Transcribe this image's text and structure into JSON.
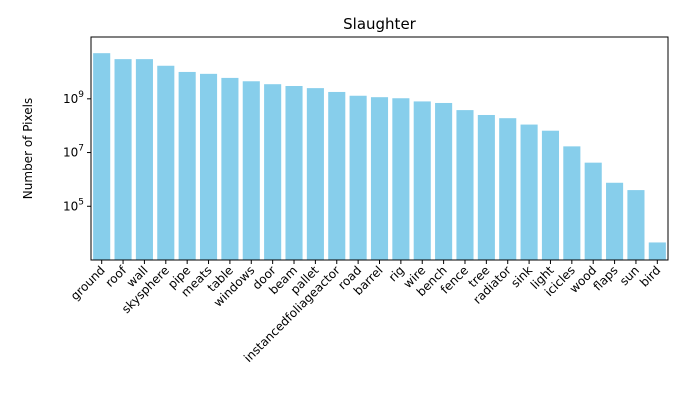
{
  "chart_data": {
    "type": "bar",
    "title": "Slaughter",
    "xlabel": "",
    "ylabel": "Number of Pixels",
    "yscale": "log",
    "ylim": [
      1000,
      200000000000
    ],
    "yticks": [
      {
        "value": 100000,
        "base": "10",
        "exp": "5"
      },
      {
        "value": 10000000,
        "base": "10",
        "exp": "7"
      },
      {
        "value": 1000000000,
        "base": "10",
        "exp": "9"
      }
    ],
    "bar_color": "#87ceeb",
    "grid": false,
    "categories": [
      "ground",
      "roof",
      "wall",
      "skysphere",
      "pipe",
      "meats",
      "table",
      "windows",
      "door",
      "beam",
      "pallet",
      "instancedfoliageactor",
      "road",
      "barrel",
      "rig",
      "wire",
      "bench",
      "fence",
      "tree",
      "radiator",
      "sink",
      "light",
      "icicles",
      "wood",
      "flaps",
      "sun",
      "bird"
    ],
    "values": [
      50000000000,
      30000000000,
      30000000000,
      17000000000,
      10000000000,
      8500000000,
      6000000000,
      4500000000,
      3500000000,
      3000000000,
      2500000000,
      1800000000,
      1300000000,
      1150000000,
      1050000000,
      800000000,
      700000000,
      380000000,
      250000000,
      190000000,
      110000000,
      65000000,
      17000000,
      4200000,
      750000,
      400000,
      4500
    ]
  }
}
